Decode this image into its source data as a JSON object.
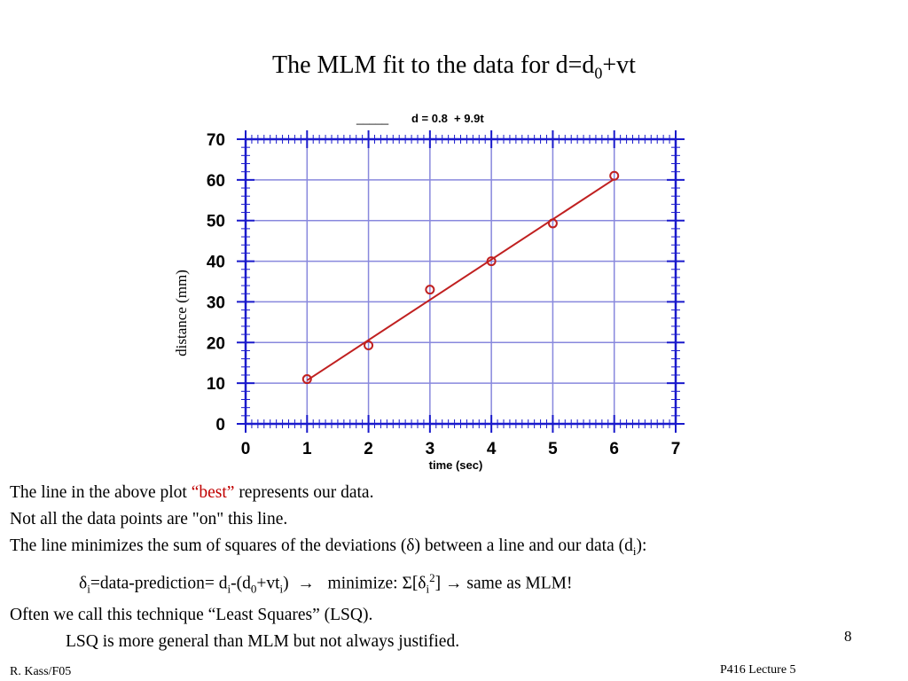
{
  "slide": {
    "title_main": "The MLM fit to the data for d=d",
    "title_sub": "0",
    "title_tail": "+vt",
    "page_number": "8",
    "footer_left": "R. Kass/F05",
    "footer_right": "P416 Lecture 5"
  },
  "body": {
    "line1_a": "The line in the above plot ",
    "line1_best": "“best”",
    "line1_b": " represents our data.",
    "line2": "Not all the data points are \"on\" this line.",
    "line3_a": "The line minimizes the sum of squares of the deviations (δ) between a line and our data (d",
    "line3_sub": "i",
    "line3_b": "):",
    "line4_d": "δ",
    "line4_i1": "i",
    "line4_a": "=data-prediction= d",
    "line4_i2": "i",
    "line4_b": "-(d",
    "line4_0": "0",
    "line4_c": "+vt",
    "line4_i3": "i",
    "line4_d2": ")  →   minimize: Σ[δ",
    "line4_i4": "i",
    "line4_sup": "2",
    "line4_e": "] → same as MLM!",
    "line5": "Often we call this technique “Least Squares” (LSQ).",
    "line6": "LSQ is more general than MLM but not always justified."
  },
  "chart_data": {
    "type": "scatter",
    "legend_line": "_____",
    "legend_text": "d = 0.8  + 9.9t",
    "xlabel": "time (sec)",
    "ylabel": "distance (mm)",
    "xlim": [
      0,
      7
    ],
    "ylim": [
      0,
      70
    ],
    "x_ticks": [
      "0",
      "1",
      "2",
      "3",
      "4",
      "5",
      "6",
      "7"
    ],
    "y_ticks": [
      "0",
      "10",
      "20",
      "30",
      "40",
      "50",
      "60",
      "70"
    ],
    "grid": true,
    "points": [
      {
        "x": 1,
        "y": 11
      },
      {
        "x": 2,
        "y": 19.3
      },
      {
        "x": 3,
        "y": 33
      },
      {
        "x": 4,
        "y": 40
      },
      {
        "x": 5,
        "y": 49.3
      },
      {
        "x": 6,
        "y": 61
      }
    ],
    "fit": {
      "intercept": 0.8,
      "slope": 9.9,
      "x_range": [
        1,
        6
      ]
    },
    "colors": {
      "axis": "#1a1acc",
      "grid": "#8888dd",
      "data": "#c02020"
    }
  }
}
